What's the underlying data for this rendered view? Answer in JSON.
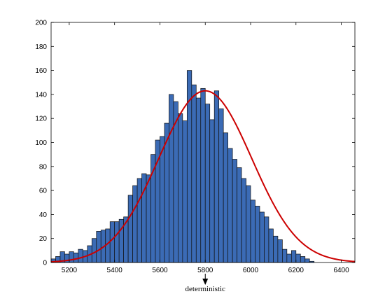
{
  "chart_data": {
    "type": "bar",
    "title": "",
    "xlabel": "",
    "ylabel": "",
    "xlim": [
      5120,
      6460
    ],
    "ylim": [
      0,
      200
    ],
    "grid": false,
    "bin_width": 20,
    "bin_start": 5120,
    "x_ticks": [
      5200,
      5400,
      5600,
      5800,
      6000,
      6200,
      6400
    ],
    "y_ticks": [
      0,
      20,
      40,
      60,
      80,
      100,
      120,
      140,
      160,
      180,
      200
    ],
    "bar_color": "#3B6BB5",
    "bar_edge_color": "#111111",
    "series": [
      {
        "name": "",
        "values": [
          3,
          5,
          9,
          7,
          9,
          8,
          11,
          10,
          14,
          20,
          26,
          27,
          28,
          34,
          34,
          36,
          38,
          56,
          64,
          70,
          74,
          73,
          90,
          102,
          105,
          116,
          140,
          134,
          124,
          118,
          160,
          148,
          137,
          145,
          132,
          119,
          143,
          128,
          108,
          95,
          86,
          79,
          70,
          64,
          52,
          47,
          42,
          38,
          28,
          22,
          19,
          11,
          7,
          10,
          7,
          5,
          3,
          1
        ]
      }
    ],
    "fit_curve": {
      "type": "normal",
      "mean": 5800,
      "sd": 205,
      "peak": 143,
      "color": "#CC0000"
    },
    "annotation": {
      "text": "deterministic",
      "x": 5800
    }
  }
}
